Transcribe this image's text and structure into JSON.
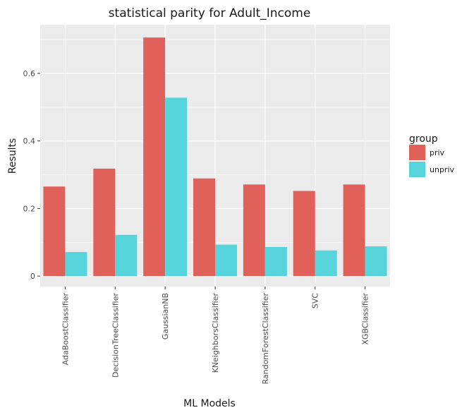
{
  "chart_data": {
    "type": "bar",
    "title": "statistical parity for Adult_Income",
    "xlabel": "ML Models",
    "ylabel": "Results",
    "categories": [
      "AdaBoostClassifier",
      "DecisionTreeClassifier",
      "GaussianNB",
      "KNeighborsClassifier",
      "RandomForestClassifier",
      "SVC",
      "XGBClassifier"
    ],
    "series": [
      {
        "name": "priv",
        "color": "#e0605a",
        "values": [
          0.265,
          0.318,
          0.706,
          0.289,
          0.271,
          0.252,
          0.271
        ]
      },
      {
        "name": "unpriv",
        "color": "#56d3db",
        "values": [
          0.071,
          0.122,
          0.528,
          0.093,
          0.086,
          0.076,
          0.088
        ]
      }
    ],
    "ylim": [
      -0.031,
      0.744
    ],
    "yticks": [
      0,
      0.2,
      0.4,
      0.6
    ],
    "ytick_labels": [
      "0",
      "0.2",
      "0.4",
      "0.6"
    ],
    "grid": true,
    "legend": {
      "title": "group",
      "position": "right",
      "entries": [
        "priv",
        "unpriv"
      ]
    }
  }
}
